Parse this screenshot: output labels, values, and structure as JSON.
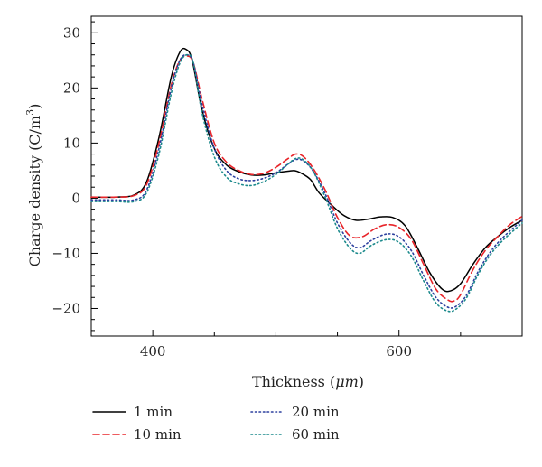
{
  "chart_data": {
    "type": "line",
    "xlabel_main": "Thickness (",
    "xlabel_unit": "μm",
    "xlabel_close": ")",
    "ylabel_main": "Charge density (C/m",
    "ylabel_sup": "3",
    "ylabel_close": ")",
    "xlim": [
      350,
      700
    ],
    "ylim": [
      -25,
      33
    ],
    "xticks": [
      400,
      600
    ],
    "yticks": [
      -20,
      -10,
      0,
      10,
      20,
      30
    ],
    "xtick_labels": [
      "400",
      "600"
    ],
    "ytick_labels": [
      "−20",
      "−10",
      "0",
      "10",
      "20",
      "30"
    ],
    "grid": false,
    "legend_position": "bottom",
    "series": [
      {
        "name": "1 min",
        "color": "#000000",
        "dash": "solid",
        "x": [
          350,
          370,
          385,
          395,
          405,
          415,
          422,
          427,
          432,
          440,
          450,
          460,
          470,
          480,
          490,
          500,
          510,
          515,
          520,
          528,
          535,
          545,
          555,
          565,
          575,
          585,
          595,
          605,
          615,
          625,
          635,
          642,
          650,
          660,
          670,
          680,
          690,
          700
        ],
        "y": [
          0.2,
          0.2,
          0.6,
          3,
          11,
          22,
          26.5,
          27,
          25,
          16,
          9,
          6,
          4.8,
          4.2,
          4.2,
          4.6,
          4.9,
          5,
          4.6,
          3.4,
          1,
          -1.2,
          -3.1,
          -4,
          -3.8,
          -3.4,
          -3.5,
          -5,
          -9,
          -13.5,
          -16.5,
          -16.8,
          -15.5,
          -12,
          -9,
          -7,
          -5.3,
          -4
        ]
      },
      {
        "name": "10 min",
        "color": "#e8252a",
        "dash": "dashed",
        "x": [
          350,
          370,
          385,
          395,
          405,
          415,
          422,
          428,
          433,
          440,
          450,
          460,
          470,
          480,
          490,
          500,
          510,
          516,
          522,
          530,
          540,
          550,
          560,
          570,
          580,
          590,
          600,
          610,
          620,
          630,
          640,
          645,
          650,
          660,
          670,
          680,
          690,
          700
        ],
        "y": [
          0.2,
          0.2,
          0.5,
          2.5,
          10,
          20.5,
          25,
          25.8,
          24.5,
          18,
          10,
          6.5,
          5,
          4.3,
          4.5,
          5.6,
          7.2,
          8,
          7.6,
          5.5,
          1.5,
          -3.5,
          -6.8,
          -7,
          -5.6,
          -4.8,
          -5.3,
          -7.5,
          -12,
          -16.5,
          -18.5,
          -18.6,
          -17.5,
          -13,
          -9.5,
          -7,
          -4.8,
          -3.3
        ]
      },
      {
        "name": "20 min",
        "color": "#2b3f9e",
        "dash": "dotted",
        "x": [
          350,
          370,
          385,
          395,
          405,
          415,
          422,
          428,
          433,
          440,
          450,
          460,
          470,
          480,
          490,
          500,
          510,
          516,
          522,
          530,
          540,
          550,
          560,
          568,
          578,
          590,
          600,
          610,
          620,
          630,
          640,
          647,
          655,
          665,
          675,
          685,
          700
        ],
        "y": [
          -0.3,
          -0.3,
          -0.3,
          1.5,
          9,
          20,
          25,
          26,
          24.5,
          17,
          9,
          5,
          3.5,
          3.2,
          3.6,
          4.6,
          6.2,
          7,
          6.8,
          5,
          0.8,
          -4.5,
          -8,
          -9,
          -7.6,
          -6.5,
          -7,
          -9.5,
          -14,
          -18,
          -19.8,
          -19.5,
          -17.5,
          -13,
          -9.5,
          -7,
          -4
        ]
      },
      {
        "name": "60 min",
        "color": "#1c8a8c",
        "dash": "dotted",
        "x": [
          350,
          370,
          385,
          395,
          405,
          415,
          422,
          428,
          433,
          440,
          450,
          460,
          470,
          480,
          490,
          500,
          510,
          516,
          522,
          530,
          540,
          550,
          560,
          568,
          578,
          590,
          600,
          610,
          620,
          630,
          640,
          647,
          655,
          665,
          675,
          685,
          700
        ],
        "y": [
          -0.6,
          -0.6,
          -0.6,
          1,
          8,
          19,
          24.5,
          26,
          24.5,
          15.5,
          7.5,
          3.8,
          2.6,
          2.3,
          3,
          4.3,
          6.2,
          7.2,
          7,
          5,
          0.2,
          -5.5,
          -9,
          -10,
          -8.5,
          -7.5,
          -8,
          -10.5,
          -15,
          -19,
          -20.5,
          -20,
          -18,
          -13.5,
          -10,
          -7.5,
          -4.5
        ]
      }
    ]
  }
}
